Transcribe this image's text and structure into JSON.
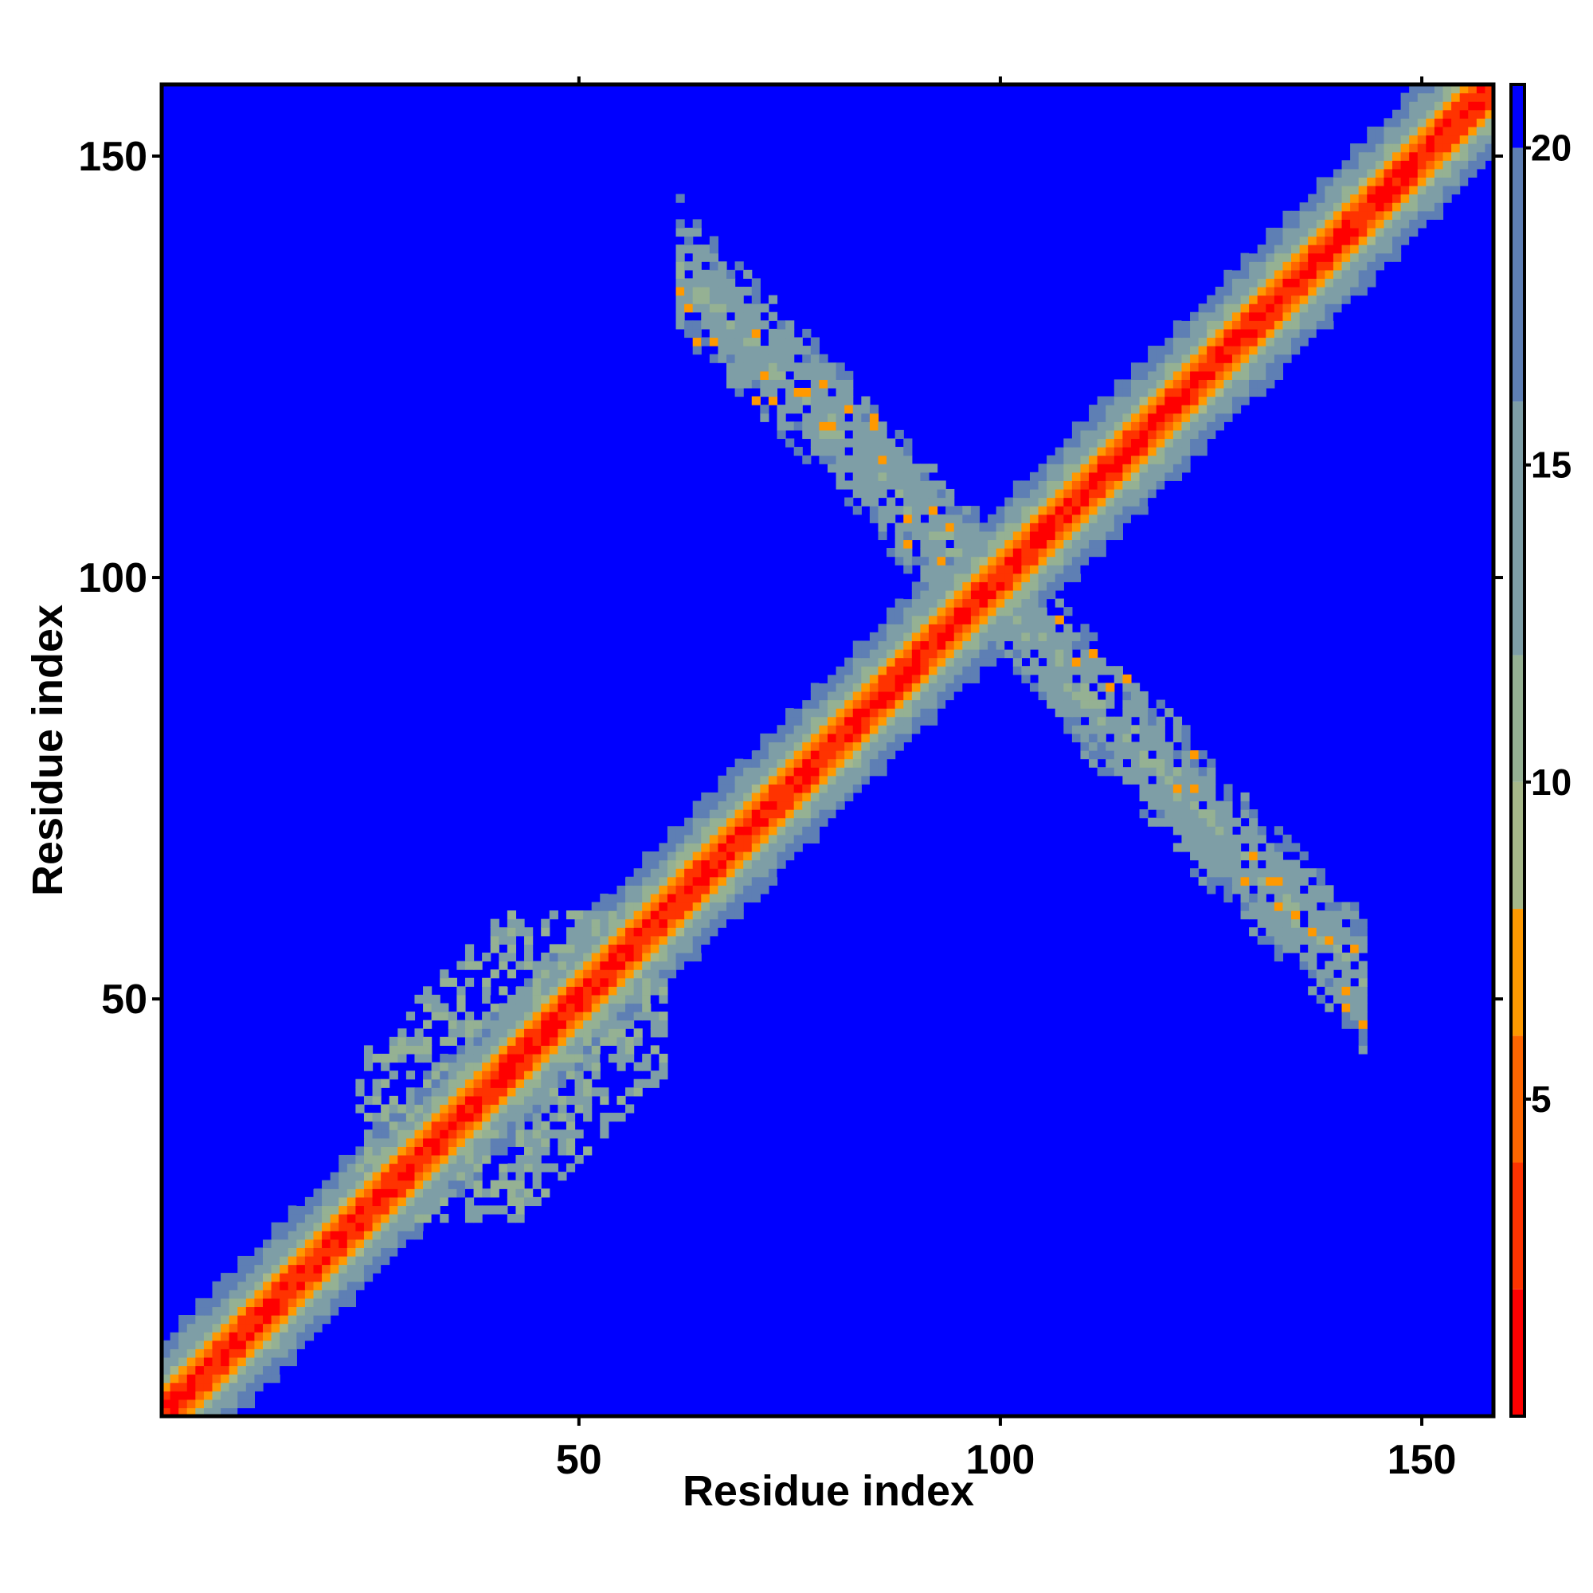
{
  "chart_data": {
    "type": "heatmap",
    "title": "",
    "xlabel": "Residue index",
    "ylabel": "Residue index",
    "residue_count": 158,
    "xlim": [
      1,
      158
    ],
    "ylim": [
      1,
      158
    ],
    "x_ticks": [
      50,
      100,
      150
    ],
    "y_ticks": [
      50,
      100,
      150
    ],
    "x_tick_labels": [
      "50",
      "100",
      "150"
    ],
    "y_tick_labels": [
      "50",
      "100",
      "150"
    ],
    "colorbar": {
      "range": [
        0,
        21
      ],
      "ticks": [
        5,
        10,
        15,
        20
      ],
      "tick_labels": [
        "5",
        "10",
        "15",
        "20"
      ],
      "levels": [
        {
          "from": 0,
          "to": 2,
          "color": "#ff0000"
        },
        {
          "from": 2,
          "to": 4,
          "color": "#ff3300"
        },
        {
          "from": 4,
          "to": 6,
          "color": "#ff6600"
        },
        {
          "from": 6,
          "to": 8,
          "color": "#ff9900"
        },
        {
          "from": 8,
          "to": 10,
          "color": "#a6b889"
        },
        {
          "from": 10,
          "to": 12,
          "color": "#95b193"
        },
        {
          "from": 12,
          "to": 16,
          "color": "#7e9ea6"
        },
        {
          "from": 16,
          "to": 20,
          "color": "#5e7fb4"
        },
        {
          "from": 20,
          "to": 21,
          "color": "#0000ff"
        }
      ]
    },
    "background_value": 21,
    "background_color": "#0000ff",
    "features": [
      {
        "kind": "diagonal",
        "from": 1,
        "to": 158,
        "core_value": 1,
        "halo_width": 9
      },
      {
        "kind": "antidiagonal_band",
        "x_range": [
          62,
          143
        ],
        "y_center_at_start": 137,
        "slope": -1.05,
        "width": 8,
        "value": 12
      },
      {
        "kind": "off_diagonal_patch",
        "x_range": [
          24,
          60
        ],
        "y_range": [
          25,
          58
        ],
        "value": 13
      }
    ]
  }
}
